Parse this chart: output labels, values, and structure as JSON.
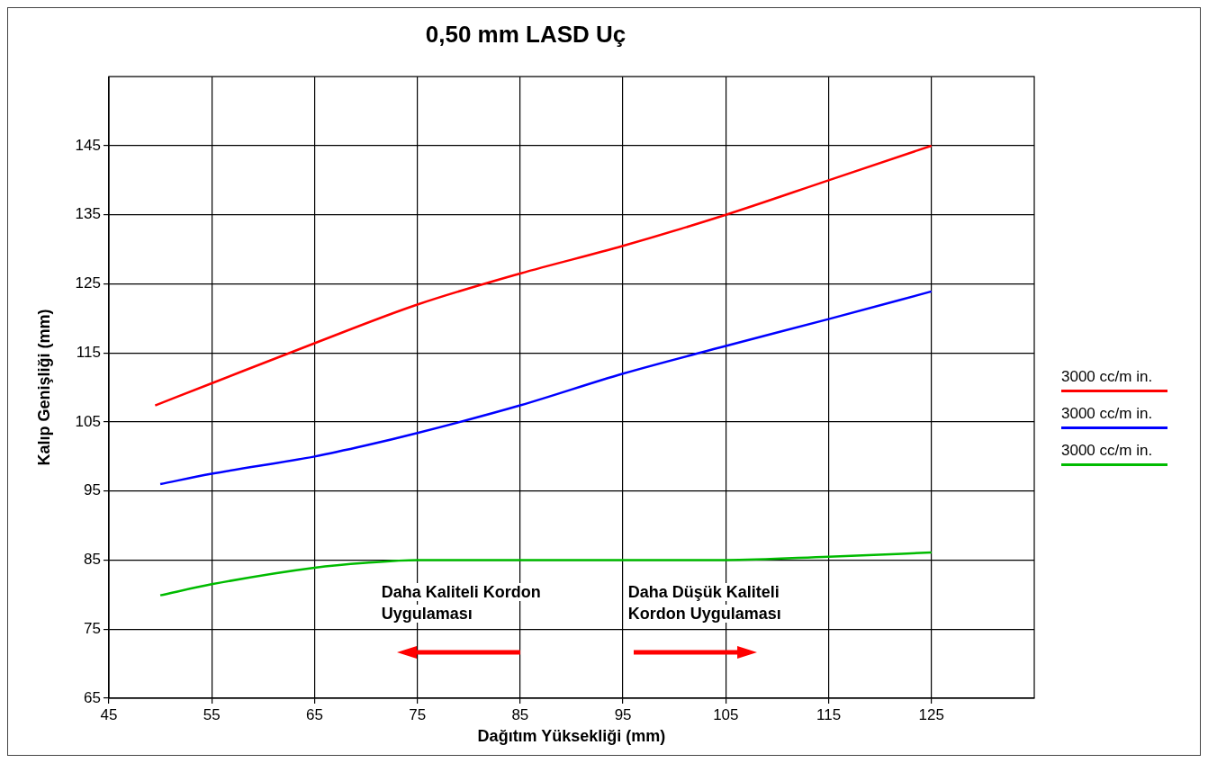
{
  "chart_data": {
    "type": "line",
    "title": "0,50 mm LASD Uç",
    "xlabel": "Dağıtım Yüksekliği (mm)",
    "ylabel": "Kalıp Genişliği (mm)",
    "xlim": [
      45,
      135
    ],
    "xticks": [
      45,
      55,
      65,
      75,
      85,
      95,
      105,
      115,
      125
    ],
    "ylim": [
      65,
      155
    ],
    "yticks": [
      65,
      75,
      85,
      95,
      105,
      115,
      125,
      135,
      145
    ],
    "grid": true,
    "legend": "right",
    "marker": "none",
    "line_style": "solid",
    "series": [
      {
        "name": "3000 cc/m in.",
        "color": "#ff0000",
        "x": [
          49.5,
          55,
          65,
          75,
          85,
          95,
          105,
          115,
          125
        ],
        "values": [
          107.4,
          110.6,
          116.4,
          122,
          126.5,
          130.5,
          135,
          140,
          145
        ]
      },
      {
        "name": "3000 cc/m in.",
        "color": "#0000ff",
        "x": [
          50,
          55,
          65,
          70,
          75,
          85,
          95,
          105,
          115,
          125
        ],
        "values": [
          96,
          97.5,
          100,
          101.6,
          103.4,
          107.4,
          112,
          116,
          119.9,
          123.9
        ]
      },
      {
        "name": "3000 cc/m in.",
        "color": "#00bb00",
        "x": [
          50,
          55,
          65,
          70,
          75,
          85,
          95,
          105,
          115,
          125
        ],
        "values": [
          79.9,
          81.5,
          83.9,
          84.6,
          85,
          85,
          85,
          85,
          85.5,
          86.1
        ]
      }
    ],
    "annotations": [
      "Daha Kaliteli Kordon Uygulaması",
      "Daha Düşük Kaliteli Kordon Uygulaması"
    ]
  }
}
